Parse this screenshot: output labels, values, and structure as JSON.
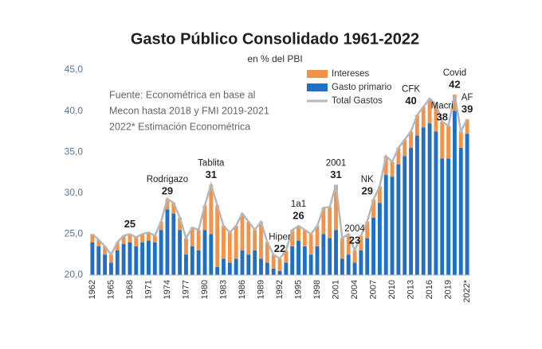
{
  "chart_data": {
    "type": "stacked-bar-line",
    "title": "Gasto Público Consolidado 1961-2022",
    "subtitle": "en % del PBI",
    "source": [
      "Fuente: Econométrica en base al",
      "Mecon hasta 2018 y FMI 2019-2021",
      "2022* Estimación Econométrica"
    ],
    "categories": [
      "1962",
      null,
      null,
      "1965",
      null,
      null,
      "1968",
      null,
      null,
      "1971",
      null,
      null,
      "1974",
      null,
      null,
      "1977",
      null,
      null,
      "1980",
      null,
      null,
      "1983",
      null,
      null,
      "1986",
      null,
      null,
      "1989",
      null,
      null,
      "1992",
      null,
      null,
      "1995",
      null,
      null,
      "1998",
      null,
      null,
      "2001",
      null,
      null,
      "2004",
      null,
      null,
      "2007",
      null,
      null,
      "2010",
      null,
      null,
      "2013",
      null,
      null,
      "2016",
      null,
      null,
      "2019",
      null,
      null,
      "2022*"
    ],
    "series": [
      {
        "name": "Intereses",
        "color": "#f2934a",
        "values": [
          1,
          0.8,
          1,
          1,
          1,
          1,
          1,
          1.1,
          1,
          1,
          0.8,
          1,
          1.3,
          1.3,
          1.5,
          2,
          2.3,
          2.5,
          3,
          6,
          7.5,
          4,
          3.7,
          4,
          4.5,
          4,
          2.5,
          4.5,
          2.5,
          1.7,
          1.5,
          1.5,
          2,
          1.8,
          2,
          2.5,
          2.5,
          3.2,
          3.8,
          5.5,
          2.5,
          2.5,
          1.5,
          1.8,
          2,
          2.2,
          2,
          2.3,
          1.8,
          2,
          2,
          2,
          2.5,
          2.5,
          3,
          3.3,
          4.5,
          4,
          2,
          2,
          1.8
        ]
      },
      {
        "name": "Gasto primario",
        "color": "#1f6fc4",
        "values": [
          24,
          23.5,
          22.5,
          21.5,
          23,
          23.8,
          24,
          23.5,
          24,
          24.2,
          24,
          25.5,
          28,
          27.5,
          25.5,
          22.5,
          23.5,
          23,
          25.5,
          25,
          21,
          22,
          21.5,
          22,
          23,
          22.5,
          23,
          22,
          21.5,
          20.8,
          20.5,
          21.5,
          23.5,
          24.2,
          23.5,
          22.5,
          23.5,
          25,
          24.5,
          25.5,
          22,
          22.5,
          21.5,
          23,
          24.5,
          27,
          28.8,
          32.2,
          32,
          33.5,
          34.5,
          35.5,
          37,
          38,
          38.5,
          37.5,
          34.2,
          34.2,
          40,
          35.5,
          37.2
        ]
      },
      {
        "name": "Total Gastos",
        "color": "#b4b8bd",
        "values": [
          25,
          24.3,
          23.5,
          22.5,
          24,
          24.8,
          25,
          24.6,
          25,
          25.2,
          24.8,
          26.5,
          29.3,
          28.8,
          27,
          24.5,
          25.8,
          25.5,
          28.5,
          31,
          28.5,
          26,
          25.2,
          26,
          27.5,
          26.5,
          25.5,
          26.5,
          24,
          22.5,
          22,
          23,
          25.5,
          26,
          25.5,
          25,
          26,
          28.2,
          28.3,
          31,
          24.5,
          25,
          23,
          24.8,
          26.5,
          29.2,
          30.8,
          34.5,
          33.8,
          35.5,
          36.5,
          37.5,
          39.5,
          40.5,
          41.5,
          40.8,
          38.7,
          38.2,
          42,
          37.5,
          39
        ]
      }
    ],
    "ylim": [
      20,
      45
    ],
    "yticks": [
      {
        "value": 20,
        "label": "20,0"
      },
      {
        "value": 25,
        "label": "25,0"
      },
      {
        "value": 30,
        "label": "30,0"
      },
      {
        "value": 35,
        "label": "35,0"
      },
      {
        "value": 40,
        "label": "40,0"
      },
      {
        "value": 45,
        "label": "45,0"
      }
    ],
    "annotations": [
      {
        "value": 25
      },
      {
        "label": "Rodrigazo",
        "value": 29
      },
      {
        "label": "Tablita",
        "value": 31
      },
      {
        "label": "Hiper",
        "value": 22
      },
      {
        "label": "1a1",
        "value": 26
      },
      {
        "label": "2001",
        "value": 31
      },
      {
        "label": "2004",
        "value": 23
      },
      {
        "label": "NK",
        "value": 29
      },
      {
        "label": "CFK",
        "value": 40
      },
      {
        "label": "Macri",
        "value": 38
      },
      {
        "label": "Covid",
        "value": 42
      },
      {
        "label": "AF",
        "value": 39
      }
    ]
  }
}
